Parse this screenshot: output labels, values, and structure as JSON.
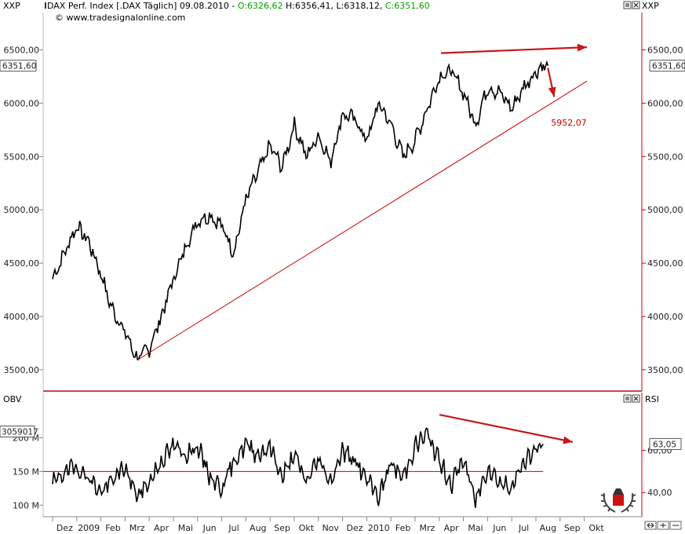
{
  "header": {
    "left_code": "XXP",
    "right_code": "XXP",
    "title_prefix": "DAX Perf. Index [.DAX Täglich] 09.08.2010 - ",
    "open": "O:6326,62",
    "high": "H:6356,41",
    "low": "L:6318,12",
    "close": "C:6351,60",
    "source": "www.tradesignalonline.com"
  },
  "colors": {
    "price_line": "#000000",
    "trend_line": "#cc0000",
    "arrow": "#c41a1a",
    "open_green": "#00a000",
    "axis": "#cc0000"
  },
  "icons": [
    "square-icon",
    "close-icon",
    "laurel-logo-icon"
  ],
  "chart_data": [
    {
      "type": "line",
      "title": "DAX Perf. Index [.DAX Täglich]",
      "ylim": [
        3300,
        6850
      ],
      "y_ticks": [
        3500,
        4000,
        4500,
        5000,
        5500,
        6000,
        6500
      ],
      "y_tick_labels": [
        "3500,00",
        "4000,00",
        "4500,00",
        "5000,00",
        "5500,00",
        "6000,00",
        "6500,00"
      ],
      "last_value_label": "6351,60",
      "last_value": 6351.6,
      "annotation_label": "5952,07",
      "x_labels": [
        "Dez",
        "2009",
        "Feb",
        "Mrz",
        "Apr",
        "Mai",
        "Jun",
        "Jul",
        "Aug",
        "Sep",
        "Okt",
        "Nov",
        "Dez",
        "2010",
        "Feb",
        "Mrz",
        "Apr",
        "Mai",
        "Jun",
        "Jul",
        "Aug",
        "Sep",
        "Okt"
      ],
      "x_start_month": 11,
      "series": [
        {
          "x": [
            0,
            0.5,
            1.0,
            1.5,
            2.0,
            2.4,
            3.0,
            3.5,
            4.0,
            4.5,
            5.0,
            5.5,
            6.0,
            6.5,
            7.0,
            7.5,
            8.0,
            8.5,
            9.0,
            9.5,
            10.0,
            10.5,
            11.0,
            11.5,
            12.0,
            12.5,
            13.0,
            13.5,
            14.0,
            14.5,
            15.0,
            15.5,
            16.0,
            16.5,
            17.0,
            17.5,
            18.0,
            18.5,
            19.0,
            19.5,
            20.0,
            20.3,
            20.5
          ],
          "y": [
            4350,
            4600,
            4850,
            4700,
            4400,
            4100,
            3850,
            3600,
            3700,
            4000,
            4350,
            4650,
            4900,
            4950,
            4850,
            4600,
            5100,
            5350,
            5600,
            5400,
            5800,
            5500,
            5700,
            5450,
            5900,
            5850,
            5650,
            6000,
            5800,
            5500,
            5650,
            5950,
            6250,
            6300,
            6100,
            5800,
            6150,
            6100,
            5950,
            6150,
            6300,
            6351,
            6351.6
          ]
        },
        {
          "name": "",
          "x": [
            3.5,
            20.3
          ],
          "y": [
            3590,
            5952.07
          ]
        }
      ]
    },
    {
      "type": "line",
      "title": "",
      "left_label": "OBV",
      "right_label": "RSI",
      "ylim": [
        30,
        80
      ],
      "left_ticks": [
        "100 M",
        "150 M",
        "200 M"
      ],
      "left_last_label": "3059017",
      "right_ticks": [
        "40,00",
        "60,00"
      ],
      "right_last_label": "63,05",
      "reference_level": 50,
      "series": [
        {
          "name": "",
          "x": [
            0,
            0.5,
            1.0,
            1.5,
            2.0,
            2.5,
            3.0,
            3.5,
            4.0,
            4.5,
            5.0,
            5.5,
            6.0,
            6.5,
            7.0,
            7.5,
            8.0,
            8.5,
            9.0,
            9.5,
            10.0,
            10.5,
            11.0,
            11.5,
            12.0,
            12.5,
            13.0,
            13.5,
            14.0,
            14.5,
            15.0,
            15.5,
            16.0,
            16.5,
            17.0,
            17.5,
            18.0,
            18.5,
            19.0,
            19.5,
            20.0,
            20.3
          ],
          "y": [
            44,
            50,
            52,
            47,
            40,
            46,
            52,
            38,
            45,
            55,
            62,
            58,
            62,
            48,
            42,
            55,
            63,
            58,
            62,
            47,
            58,
            45,
            56,
            45,
            60,
            55,
            46,
            38,
            54,
            47,
            62,
            68,
            55,
            44,
            56,
            36,
            52,
            45,
            42,
            55,
            60,
            63.05
          ]
        }
      ]
    }
  ]
}
